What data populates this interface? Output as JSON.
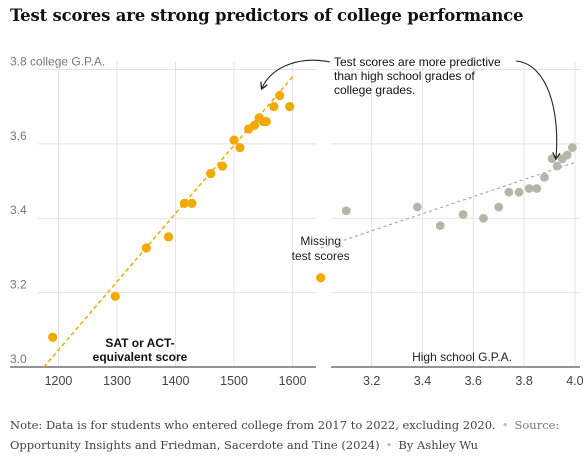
{
  "title": "Test scores are strong predictors of college performance",
  "note": {
    "text": "Note: Data is for students who entered college from 2017 to 2022, excluding 2020.",
    "source_label": "Source:",
    "source": "Opportunity Insights and Friedman, Sacerdote and Tine (2024)",
    "byline": "By Ashley Wu"
  },
  "colors": {
    "sat": "#f2a900",
    "hs": "#b3b7a8",
    "grid": "#e3e3e3",
    "axis": "#555555"
  },
  "chart_data": [
    {
      "type": "scatter",
      "title": "",
      "xlabel": "SAT or ACT-equivalent score",
      "ylabel": "3.8 college G.P.A.",
      "x_ticks": [
        1200,
        1300,
        1400,
        1500,
        1600
      ],
      "x_tick_labels": [
        "1200",
        "1300",
        "1400",
        "1500",
        "1600"
      ],
      "y_ticks": [
        3.0,
        3.2,
        3.4,
        3.6,
        3.8
      ],
      "y_tick_labels": [
        "3.0",
        "3.2",
        "3.4",
        "3.6",
        "3.8 college G.P.A."
      ],
      "xlim": [
        1165,
        1640
      ],
      "ylim": [
        3.0,
        3.82
      ],
      "grid": true,
      "trendline": {
        "x": [
          1175,
          1600
        ],
        "y": [
          3.0,
          3.78
        ]
      },
      "points": [
        {
          "x": 1190,
          "y": 3.08
        },
        {
          "x": 1297,
          "y": 3.19
        },
        {
          "x": 1350,
          "y": 3.32
        },
        {
          "x": 1388,
          "y": 3.35
        },
        {
          "x": 1415,
          "y": 3.44
        },
        {
          "x": 1428,
          "y": 3.44
        },
        {
          "x": 1460,
          "y": 3.52
        },
        {
          "x": 1480,
          "y": 3.54
        },
        {
          "x": 1500,
          "y": 3.61
        },
        {
          "x": 1510,
          "y": 3.59
        },
        {
          "x": 1525,
          "y": 3.64
        },
        {
          "x": 1535,
          "y": 3.65
        },
        {
          "x": 1543,
          "y": 3.67
        },
        {
          "x": 1550,
          "y": 3.66
        },
        {
          "x": 1555,
          "y": 3.66
        },
        {
          "x": 1568,
          "y": 3.7
        },
        {
          "x": 1578,
          "y": 3.73
        },
        {
          "x": 1595,
          "y": 3.7
        }
      ],
      "missing_point": {
        "x": 1648,
        "y": 3.24
      },
      "annotation_missing": [
        "Missing",
        "test scores"
      ]
    },
    {
      "type": "scatter",
      "title": "",
      "xlabel": "High school G.P.A.",
      "x_ticks": [
        3.2,
        3.4,
        3.6,
        3.8,
        4.0
      ],
      "x_tick_labels": [
        "3.2",
        "3.4",
        "3.6",
        "3.8",
        "4.0"
      ],
      "xlim": [
        3.04,
        4.02
      ],
      "ylim": [
        3.0,
        3.82
      ],
      "grid": true,
      "trendline": {
        "x": [
          3.0,
          4.0
        ],
        "y": [
          3.32,
          3.55
        ]
      },
      "points": [
        {
          "x": 3.1,
          "y": 3.42
        },
        {
          "x": 3.38,
          "y": 3.43
        },
        {
          "x": 3.47,
          "y": 3.38
        },
        {
          "x": 3.56,
          "y": 3.41
        },
        {
          "x": 3.64,
          "y": 3.4
        },
        {
          "x": 3.7,
          "y": 3.43
        },
        {
          "x": 3.74,
          "y": 3.47
        },
        {
          "x": 3.78,
          "y": 3.47
        },
        {
          "x": 3.82,
          "y": 3.48
        },
        {
          "x": 3.85,
          "y": 3.48
        },
        {
          "x": 3.88,
          "y": 3.51
        },
        {
          "x": 3.91,
          "y": 3.56
        },
        {
          "x": 3.93,
          "y": 3.54
        },
        {
          "x": 3.95,
          "y": 3.56
        },
        {
          "x": 3.97,
          "y": 3.57
        },
        {
          "x": 3.99,
          "y": 3.59
        }
      ],
      "annotation": [
        "Test scores are more predictive",
        "than high school grades of",
        "college grades."
      ]
    }
  ]
}
